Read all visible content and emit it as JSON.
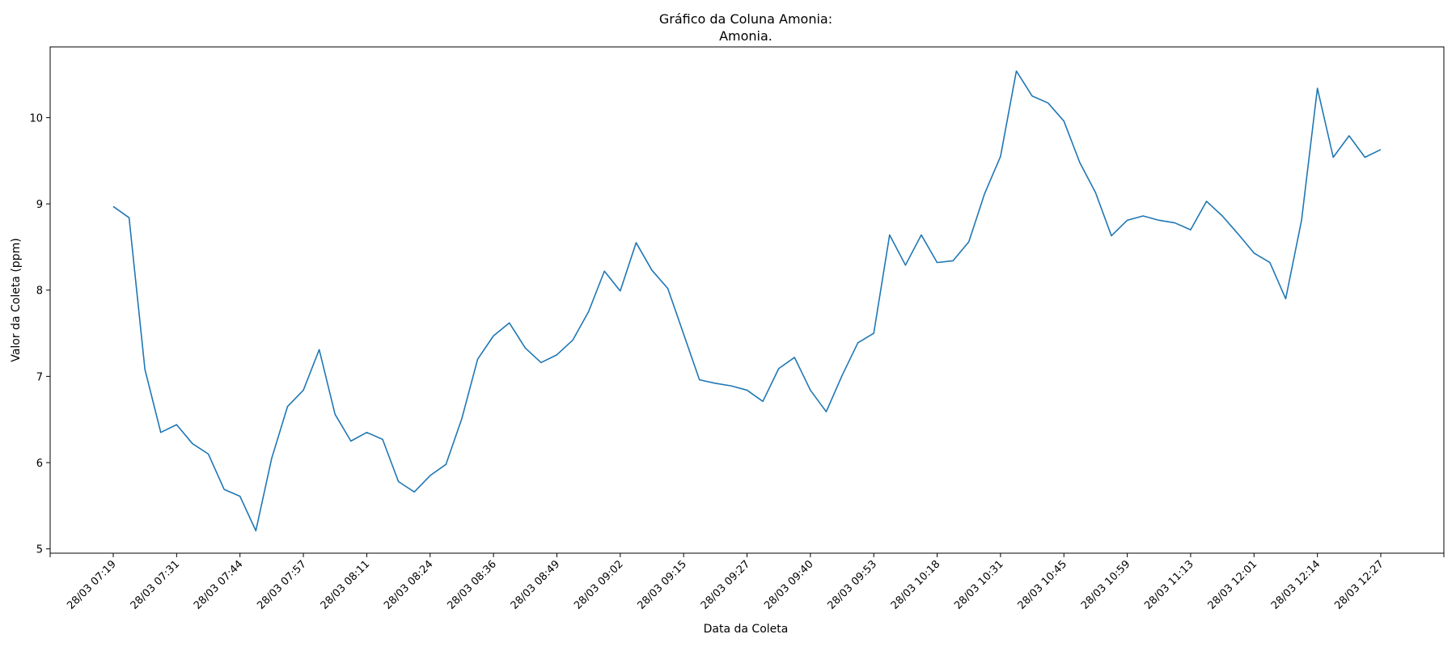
{
  "chart_data": {
    "type": "line",
    "title_line1": "Gráfico da Coluna Amonia:",
    "title_line2": "Amonia.",
    "xlabel": "Data da Coleta",
    "ylabel": "Valor da Coleta (ppm)",
    "ylim": [
      4.95,
      10.82
    ],
    "yticks": [
      5,
      6,
      7,
      8,
      9,
      10
    ],
    "grid": false,
    "line_color": "#1f77b4",
    "x_tick_labels": [
      "28/03 07:19",
      "28/03 07:31",
      "28/03 07:44",
      "28/03 07:57",
      "28/03 08:11",
      "28/03 08:24",
      "28/03 08:36",
      "28/03 08:49",
      "28/03 09:02",
      "28/03 09:15",
      "28/03 09:27",
      "28/03 09:40",
      "28/03 09:53",
      "28/03 10:18",
      "28/03 10:31",
      "28/03 10:45",
      "28/03 10:59",
      "28/03 11:13",
      "28/03 12:01",
      "28/03 12:14",
      "28/03 12:27"
    ],
    "series": [
      {
        "values": [
          8.97,
          8.84,
          7.08,
          6.35,
          6.44,
          6.22,
          6.1,
          5.69,
          5.61,
          5.21,
          6.05,
          6.65,
          6.84,
          7.31,
          6.56,
          6.25,
          6.35,
          6.27,
          5.78,
          5.66,
          5.85,
          5.98,
          6.51,
          7.2,
          7.47,
          7.62,
          7.33,
          7.16,
          7.25,
          7.42,
          7.75,
          8.22,
          7.99,
          8.55,
          8.23,
          8.02,
          7.49,
          6.96,
          6.92,
          6.89,
          6.84,
          6.71,
          7.09,
          7.22,
          6.84,
          6.59,
          7.01,
          7.39,
          7.5,
          8.64,
          8.29,
          8.64,
          8.32,
          8.34,
          8.56,
          9.12,
          9.55,
          10.54,
          10.25,
          10.17,
          9.96,
          9.48,
          9.13,
          8.63,
          8.81,
          8.86,
          8.81,
          8.78,
          8.7,
          9.03,
          8.86,
          8.65,
          8.43,
          8.32,
          7.9,
          8.81,
          10.34,
          9.54,
          9.79,
          9.54,
          9.63
        ]
      }
    ]
  }
}
